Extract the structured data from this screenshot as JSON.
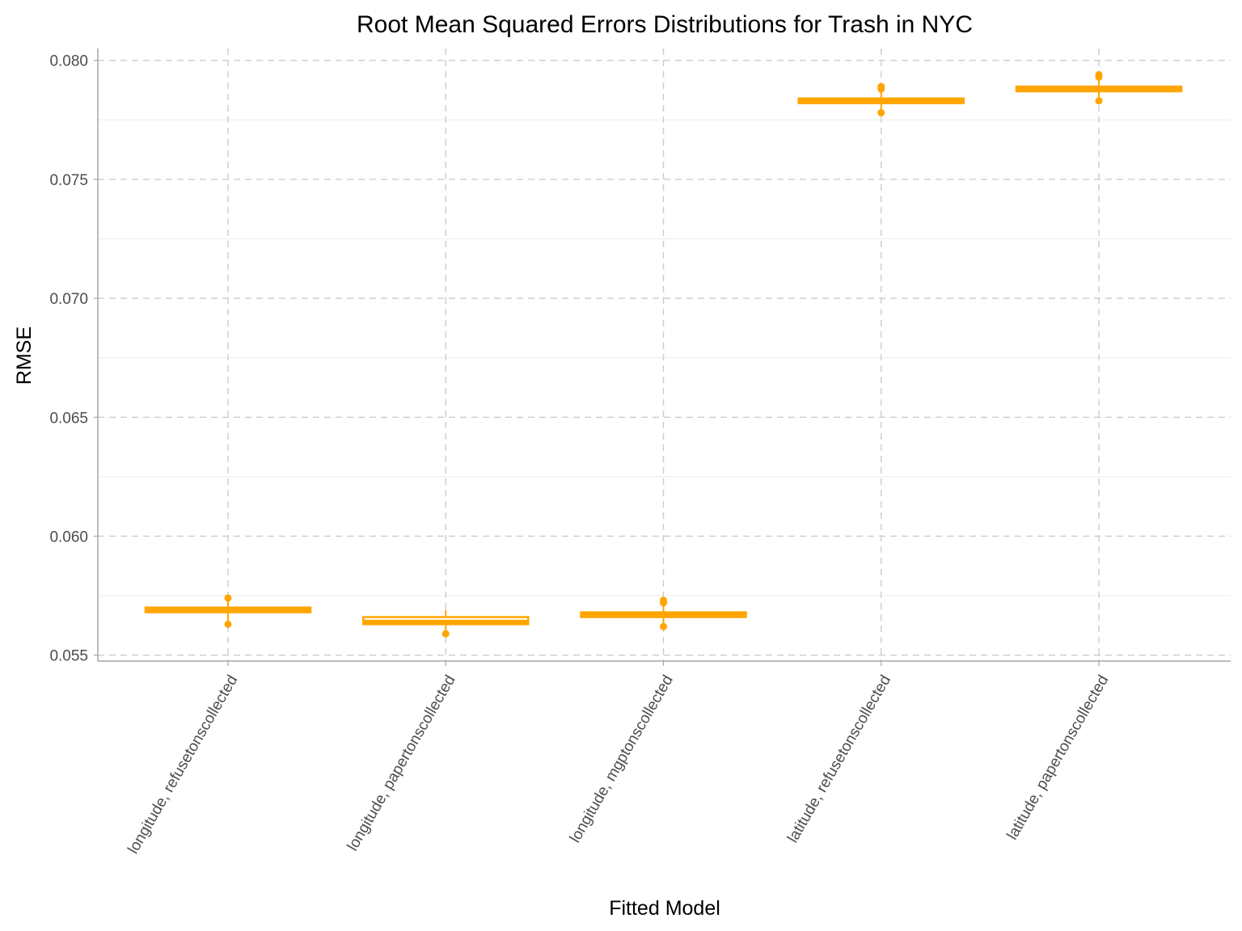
{
  "chart_data": {
    "type": "box",
    "title": "Root Mean Squared Errors Distributions for Trash in NYC",
    "xlabel": "Fitted Model",
    "ylabel": "RMSE",
    "ylim": [
      0.05475,
      0.0805
    ],
    "yticks": [
      "0.055",
      "0.060",
      "0.065",
      "0.070",
      "0.075",
      "0.080"
    ],
    "yticks_values": [
      0.055,
      0.06,
      0.065,
      0.07,
      0.075,
      0.08
    ],
    "grid": true,
    "colors": {
      "box": "#FFA500",
      "major_grid": "#cccccc",
      "minor_grid": "#ebebeb",
      "axis": "#a6a6a6"
    },
    "categories": [
      "longitude, refusetonscollected",
      "longitude, papertonscollected",
      "longitude, mgptonscollected",
      "latitude, refusetonscollected",
      "latitude, papertonscollected"
    ],
    "boxes": [
      {
        "category": "longitude, refusetonscollected",
        "q1": 0.0568,
        "median": 0.0569,
        "q3": 0.057,
        "whisker_low": 0.0564,
        "whisker_high": 0.0574,
        "outliers": [
          0.0574,
          0.0563
        ]
      },
      {
        "category": "longitude, papertonscollected",
        "q1": 0.0563,
        "median": 0.0564,
        "q3": 0.0566,
        "whisker_low": 0.056,
        "whisker_high": 0.0569,
        "outliers": [
          0.0559
        ]
      },
      {
        "category": "longitude, mgptonscollected",
        "q1": 0.0566,
        "median": 0.0567,
        "q3": 0.0568,
        "whisker_low": 0.0562,
        "whisker_high": 0.0572,
        "outliers": [
          0.0573,
          0.0572,
          0.0562
        ]
      },
      {
        "category": "latitude, refusetonscollected",
        "q1": 0.0782,
        "median": 0.0783,
        "q3": 0.0784,
        "whisker_low": 0.0779,
        "whisker_high": 0.0788,
        "outliers": [
          0.0789,
          0.0788,
          0.0778
        ]
      },
      {
        "category": "latitude, papertonscollected",
        "q1": 0.0787,
        "median": 0.0788,
        "q3": 0.0789,
        "whisker_low": 0.0784,
        "whisker_high": 0.0792,
        "outliers": [
          0.0794,
          0.0793,
          0.0783
        ]
      }
    ]
  }
}
